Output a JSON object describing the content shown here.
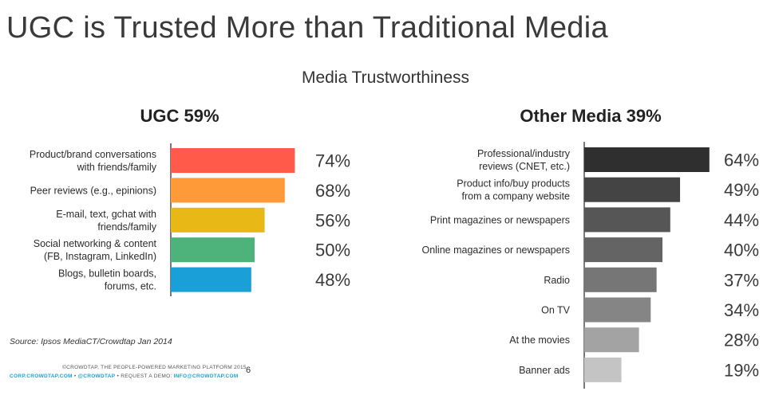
{
  "slide": {
    "title": "UGC is Trusted More than Traditional Media",
    "subtitle": "Media Trustworthiness",
    "source": "Source: Ipsos MediaCT/Crowdtap Jan 2014",
    "footer_line1": "©CROWDTAP, THE PEOPLE-POWERED MARKETING PLATFORM 2015",
    "footer_link1": "CORP.CROWDTAP.COM",
    "footer_sep": " • ",
    "footer_handle": "@CROWDTAP",
    "footer_demo": "REQUEST A DEMO: ",
    "footer_email": "INFO@CROWDTAP.COM",
    "page_number": "6"
  },
  "chart_data": [
    {
      "type": "bar",
      "orientation": "horizontal",
      "title": "UGC 59%",
      "categories": [
        [
          "Product/brand conversations",
          "with friends/family"
        ],
        [
          "Peer reviews (e.g., epinions)"
        ],
        [
          "E-mail, text, gchat with",
          "friends/family"
        ],
        [
          "Social networking & content",
          "(FB, Instagram, LinkedIn)"
        ],
        [
          "Blogs, bulletin boards,",
          "forums, etc."
        ]
      ],
      "values": [
        74,
        68,
        56,
        50,
        48
      ],
      "value_labels": [
        "74%",
        "68%",
        "56%",
        "50%",
        "48%"
      ],
      "colors": [
        "#ff5a4a",
        "#ff9a38",
        "#e8b916",
        "#4db37b",
        "#1a9fd9"
      ],
      "unit": "%"
    },
    {
      "type": "bar",
      "orientation": "horizontal",
      "title": "Other Media 39%",
      "categories": [
        [
          "Professional/industry",
          "reviews (CNET, etc.)"
        ],
        [
          "Product info/buy products",
          "from a company website"
        ],
        [
          "Print magazines or newspapers"
        ],
        [
          "Online magazines or newspapers"
        ],
        [
          "Radio"
        ],
        [
          "On TV"
        ],
        [
          "At the movies"
        ],
        [
          "Banner ads"
        ]
      ],
      "values": [
        64,
        49,
        44,
        40,
        37,
        34,
        28,
        19
      ],
      "value_labels": [
        "64%",
        "49%",
        "44%",
        "40%",
        "37%",
        "34%",
        "28%",
        "19%"
      ],
      "colors": [
        "#2f2f2f",
        "#444444",
        "#565656",
        "#646464",
        "#767676",
        "#858585",
        "#a3a3a3",
        "#c4c4c4"
      ],
      "unit": "%"
    }
  ]
}
